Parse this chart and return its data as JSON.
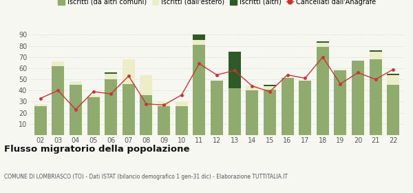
{
  "years": [
    "02",
    "03",
    "04",
    "05",
    "06",
    "07",
    "08",
    "09",
    "10",
    "11",
    "12",
    "13",
    "14",
    "15",
    "16",
    "17",
    "18",
    "19",
    "20",
    "21",
    "22"
  ],
  "iscritti_comuni": [
    26,
    62,
    45,
    34,
    50,
    46,
    36,
    26,
    26,
    81,
    49,
    42,
    40,
    41,
    51,
    49,
    79,
    58,
    67,
    68,
    45
  ],
  "iscritti_estero": [
    2,
    4,
    3,
    2,
    5,
    22,
    18,
    4,
    4,
    4,
    0,
    0,
    4,
    3,
    0,
    0,
    4,
    1,
    0,
    7,
    9
  ],
  "iscritti_altri": [
    0,
    0,
    0,
    0,
    1,
    0,
    0,
    0,
    0,
    5,
    0,
    33,
    0,
    1,
    0,
    0,
    1,
    0,
    0,
    1,
    1
  ],
  "cancellati": [
    33,
    40,
    23,
    39,
    37,
    53,
    28,
    27,
    36,
    64,
    54,
    58,
    44,
    39,
    54,
    51,
    70,
    46,
    56,
    50,
    59
  ],
  "color_comuni": "#8fac6e",
  "color_estero": "#eceec8",
  "color_altri": "#2d5a27",
  "color_cancellati": "#cc3333",
  "ylim": [
    0,
    90
  ],
  "yticks": [
    0,
    10,
    20,
    30,
    40,
    50,
    60,
    70,
    80,
    90
  ],
  "title": "Flusso migratorio della popolazione",
  "subtitle": "COMUNE DI LOMBRIASCO (TO) - Dati ISTAT (bilancio demografico 1 gen-31 dic) - Elaborazione TUTTITALIA.IT",
  "legend_labels": [
    "Iscritti (da altri comuni)",
    "Iscritti (dall'estero)",
    "Iscritti (altri)",
    "Cancellati dall'Anagrafe"
  ],
  "bg_color": "#f7f7f2",
  "grid_color": "#cccccc"
}
